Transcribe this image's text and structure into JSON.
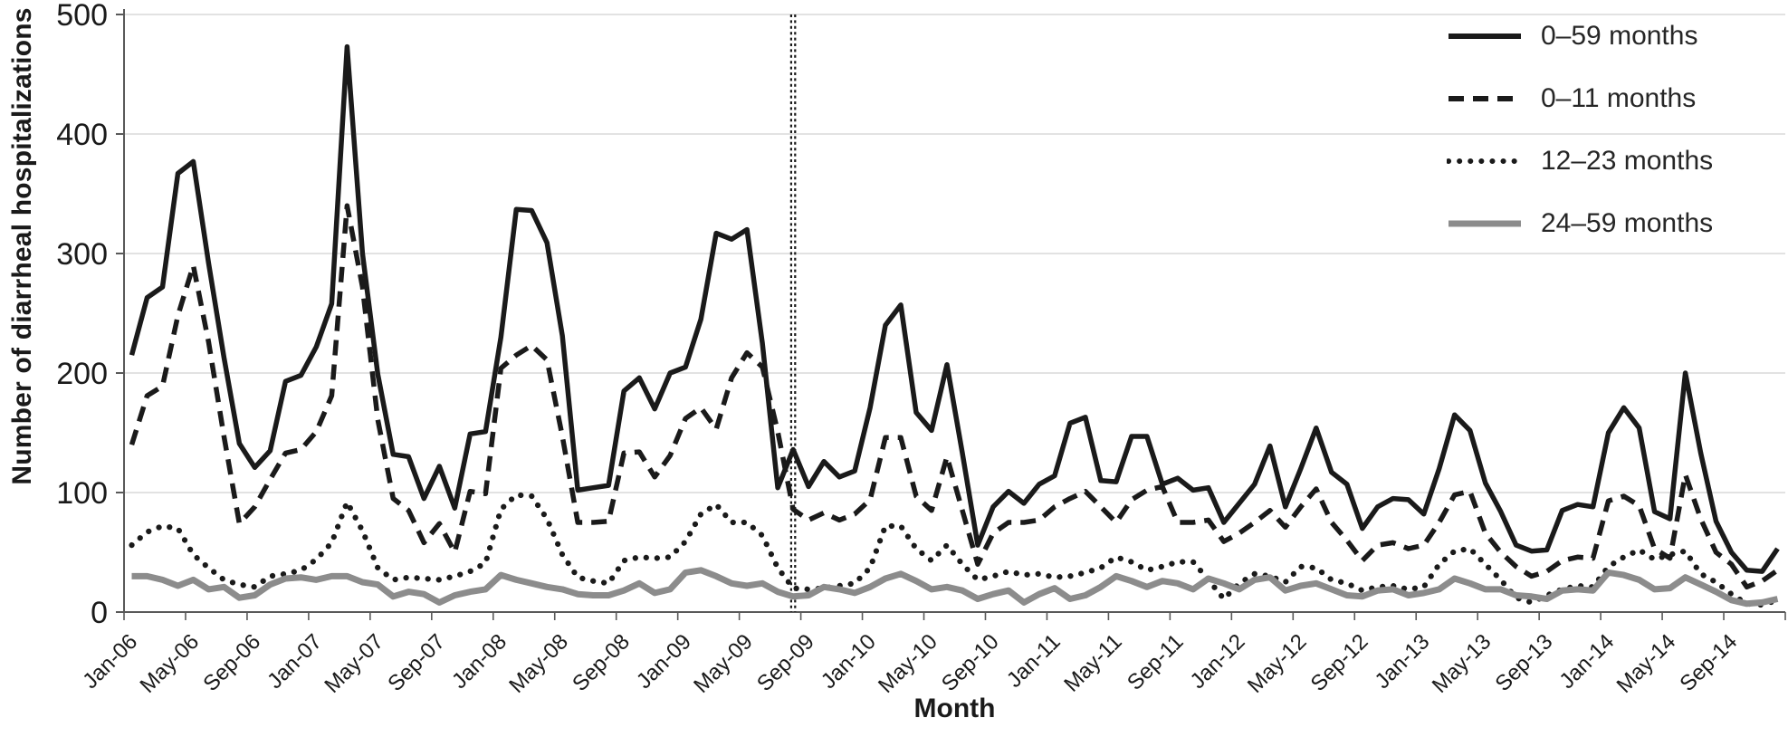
{
  "chart_data": {
    "type": "line",
    "title": "",
    "xlabel": "Month",
    "ylabel": "Number of diarrheal hospitalizations",
    "ylim": [
      0,
      500
    ],
    "y_ticks": [
      0,
      100,
      200,
      300,
      400,
      500
    ],
    "grid": "horizontal",
    "legend_position": "top-right",
    "x_tick_labels": [
      "Jan-06",
      "May-06",
      "Sep-06",
      "Jan-07",
      "May-07",
      "Sep-07",
      "Jan-08",
      "May-08",
      "Sep-08",
      "Jan-09",
      "May-09",
      "Sep-09",
      "Jan-10",
      "May-10",
      "Sep-10",
      "Jan-11",
      "May-11",
      "Sep-11",
      "Jan-12",
      "May-12",
      "Sep-12",
      "Jan-13",
      "May-13",
      "Sep-13",
      "Jan-14",
      "May-14",
      "Sep-14"
    ],
    "x_months": [
      "Jan-06",
      "Feb-06",
      "Mar-06",
      "Apr-06",
      "May-06",
      "Jun-06",
      "Jul-06",
      "Aug-06",
      "Sep-06",
      "Oct-06",
      "Nov-06",
      "Dec-06",
      "Jan-07",
      "Feb-07",
      "Mar-07",
      "Apr-07",
      "May-07",
      "Jun-07",
      "Jul-07",
      "Aug-07",
      "Sep-07",
      "Oct-07",
      "Nov-07",
      "Dec-07",
      "Jan-08",
      "Feb-08",
      "Mar-08",
      "Apr-08",
      "May-08",
      "Jun-08",
      "Jul-08",
      "Aug-08",
      "Sep-08",
      "Oct-08",
      "Nov-08",
      "Dec-08",
      "Jan-09",
      "Feb-09",
      "Mar-09",
      "Apr-09",
      "May-09",
      "Jun-09",
      "Jul-09",
      "Aug-09",
      "Sep-09",
      "Oct-09",
      "Nov-09",
      "Dec-09",
      "Jan-10",
      "Feb-10",
      "Mar-10",
      "Apr-10",
      "May-10",
      "Jun-10",
      "Jul-10",
      "Aug-10",
      "Sep-10",
      "Oct-10",
      "Nov-10",
      "Dec-10",
      "Jan-11",
      "Feb-11",
      "Mar-11",
      "Apr-11",
      "May-11",
      "Jun-11",
      "Jul-11",
      "Aug-11",
      "Sep-11",
      "Oct-11",
      "Nov-11",
      "Dec-11",
      "Jan-12",
      "Feb-12",
      "Mar-12",
      "Apr-12",
      "May-12",
      "Jun-12",
      "Jul-12",
      "Aug-12",
      "Sep-12",
      "Oct-12",
      "Nov-12",
      "Dec-12",
      "Jan-13",
      "Feb-13",
      "Mar-13",
      "Apr-13",
      "May-13",
      "Jun-13",
      "Jul-13",
      "Aug-13",
      "Sep-13",
      "Oct-13",
      "Nov-13",
      "Dec-13",
      "Jan-14",
      "Feb-14",
      "Mar-14",
      "Apr-14",
      "May-14",
      "Jun-14",
      "Jul-14",
      "Aug-14",
      "Sep-14",
      "Oct-14",
      "Nov-14",
      "Dec-14"
    ],
    "reference_line": {
      "month": "Aug-09",
      "month_index": 43,
      "style": "vertical-double-dotted",
      "color": "#1a1a1a"
    },
    "legend": [
      {
        "label": "0–59 months",
        "style": "solid",
        "color": "#1a1a1a"
      },
      {
        "label": "0–11 months",
        "style": "dashed",
        "color": "#1a1a1a"
      },
      {
        "label": "12–23 months",
        "style": "dotted",
        "color": "#1a1a1a"
      },
      {
        "label": "24–59 months",
        "style": "solid",
        "color": "#8c8c8c"
      }
    ],
    "series": [
      {
        "name": "0–59 months",
        "style": "solid",
        "color": "#1a1a1a",
        "values": [
          215,
          263,
          272,
          367,
          377,
          292,
          213,
          141,
          121,
          135,
          193,
          198,
          222,
          258,
          473,
          300,
          199,
          132,
          130,
          95,
          122,
          87,
          149,
          151,
          230,
          337,
          336,
          309,
          231,
          102,
          104,
          106,
          185,
          196,
          170,
          200,
          205,
          245,
          317,
          312,
          320,
          225,
          104,
          136,
          105,
          126,
          113,
          118,
          171,
          240,
          257,
          167,
          152,
          207,
          133,
          56,
          88,
          101,
          91,
          107,
          114,
          158,
          163,
          110,
          109,
          147,
          147,
          107,
          112,
          102,
          104,
          75,
          91,
          107,
          139,
          88,
          120,
          154,
          117,
          107,
          70,
          88,
          95,
          94,
          82,
          120,
          165,
          152,
          108,
          84,
          56,
          51,
          52,
          85,
          90,
          88,
          150,
          171,
          154,
          84,
          78,
          200,
          133,
          76,
          50,
          35,
          34,
          53
        ]
      },
      {
        "name": "0–11 months",
        "style": "dashed",
        "color": "#1a1a1a",
        "values": [
          140,
          181,
          189,
          248,
          290,
          226,
          147,
          74,
          88,
          111,
          133,
          136,
          151,
          181,
          340,
          272,
          161,
          95,
          85,
          58,
          74,
          50,
          101,
          99,
          204,
          215,
          223,
          211,
          147,
          75,
          75,
          76,
          133,
          134,
          113,
          131,
          162,
          171,
          153,
          196,
          217,
          205,
          151,
          86,
          77,
          83,
          77,
          82,
          94,
          146,
          146,
          97,
          85,
          130,
          85,
          40,
          66,
          75,
          75,
          77,
          88,
          95,
          101,
          88,
          75,
          94,
          102,
          105,
          75,
          75,
          77,
          59,
          66,
          75,
          85,
          71,
          88,
          103,
          75,
          60,
          43,
          56,
          58,
          53,
          56,
          75,
          98,
          101,
          66,
          50,
          38,
          30,
          34,
          43,
          46,
          45,
          93,
          97,
          89,
          53,
          45,
          115,
          78,
          50,
          40,
          21,
          26,
          35
        ]
      },
      {
        "name": "12–23 months",
        "style": "dotted",
        "color": "#1a1a1a",
        "values": [
          56,
          67,
          72,
          70,
          48,
          37,
          27,
          23,
          21,
          30,
          32,
          35,
          44,
          58,
          92,
          68,
          37,
          27,
          29,
          28,
          27,
          30,
          34,
          41,
          86,
          98,
          97,
          78,
          48,
          29,
          26,
          24,
          43,
          46,
          45,
          46,
          59,
          82,
          90,
          75,
          75,
          64,
          37,
          20,
          19,
          20,
          22,
          24,
          37,
          72,
          72,
          53,
          43,
          56,
          40,
          27,
          30,
          34,
          31,
          32,
          29,
          30,
          33,
          37,
          46,
          42,
          35,
          38,
          42,
          42,
          27,
          11,
          24,
          32,
          30,
          25,
          38,
          37,
          27,
          24,
          18,
          21,
          22,
          19,
          21,
          40,
          51,
          53,
          40,
          27,
          12,
          8,
          14,
          19,
          22,
          21,
          38,
          46,
          52,
          44,
          48,
          51,
          32,
          25,
          15,
          7,
          6,
          10
        ]
      },
      {
        "name": "24–59 months",
        "style": "solid",
        "color": "#8c8c8c",
        "values": [
          30,
          30,
          27,
          22,
          27,
          19,
          21,
          12,
          14,
          23,
          28,
          29,
          27,
          30,
          30,
          25,
          23,
          13,
          17,
          15,
          8,
          14,
          17,
          19,
          31,
          27,
          24,
          21,
          19,
          15,
          14,
          14,
          18,
          24,
          16,
          19,
          33,
          35,
          30,
          24,
          22,
          24,
          17,
          13,
          14,
          21,
          19,
          16,
          21,
          28,
          32,
          26,
          19,
          21,
          18,
          11,
          15,
          18,
          8,
          15,
          20,
          11,
          14,
          21,
          30,
          26,
          21,
          26,
          24,
          19,
          28,
          24,
          19,
          27,
          29,
          18,
          22,
          24,
          19,
          14,
          13,
          18,
          19,
          14,
          16,
          19,
          28,
          24,
          19,
          19,
          14,
          13,
          11,
          18,
          19,
          18,
          33,
          31,
          27,
          19,
          20,
          29,
          23,
          17,
          10,
          7,
          8,
          11
        ]
      }
    ],
    "colors": {
      "grid": "#d9d9d9",
      "axis": "#595959",
      "tick_text": "#262626"
    }
  }
}
